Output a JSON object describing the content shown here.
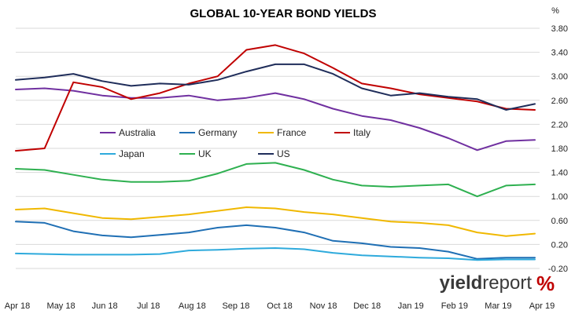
{
  "chart_data": {
    "type": "line",
    "title": "GLOBAL 10-YEAR BOND YIELDS",
    "ylabel": "%",
    "xlabel": "",
    "ylim": [
      -0.2,
      3.8
    ],
    "yticks": [
      "3.80",
      "3.40",
      "3.00",
      "2.60",
      "2.20",
      "1.80",
      "1.40",
      "1.00",
      "0.60",
      "0.20",
      "-0.20"
    ],
    "x_labels": [
      "Apr 18",
      "May 18",
      "Jun 18",
      "Jul 18",
      "Aug 18",
      "Sep 18",
      "Oct 18",
      "Nov 18",
      "Dec 18",
      "Jan 19",
      "Feb 19",
      "Mar 19",
      "Apr 19"
    ],
    "grid": true,
    "legend_position": "inside-upper-left",
    "series": [
      {
        "name": "Australia",
        "color": "#7030a0",
        "values": [
          2.78,
          2.8,
          2.76,
          2.68,
          2.64,
          2.64,
          2.68,
          2.6,
          2.64,
          2.72,
          2.62,
          2.46,
          2.34,
          2.27,
          2.14,
          1.97,
          1.77,
          1.92,
          1.94
        ]
      },
      {
        "name": "Germany",
        "color": "#1f6fb4",
        "values": [
          0.58,
          0.56,
          0.42,
          0.35,
          0.32,
          0.36,
          0.4,
          0.48,
          0.52,
          0.48,
          0.4,
          0.26,
          0.22,
          0.16,
          0.14,
          0.08,
          -0.04,
          -0.02,
          -0.02
        ]
      },
      {
        "name": "France",
        "color": "#f0b800",
        "values": [
          0.78,
          0.8,
          0.72,
          0.64,
          0.62,
          0.66,
          0.7,
          0.76,
          0.82,
          0.8,
          0.74,
          0.7,
          0.64,
          0.58,
          0.56,
          0.52,
          0.4,
          0.34,
          0.38
        ]
      },
      {
        "name": "Italy",
        "color": "#c00000",
        "values": [
          1.76,
          1.8,
          2.9,
          2.82,
          2.62,
          2.72,
          2.88,
          3.0,
          3.44,
          3.52,
          3.38,
          3.14,
          2.88,
          2.8,
          2.7,
          2.64,
          2.58,
          2.46,
          2.44
        ]
      },
      {
        "name": "Japan",
        "color": "#2eaadc",
        "values": [
          0.05,
          0.04,
          0.03,
          0.03,
          0.03,
          0.04,
          0.1,
          0.11,
          0.13,
          0.14,
          0.12,
          0.06,
          0.02,
          0.0,
          -0.02,
          -0.03,
          -0.06,
          -0.05,
          -0.05
        ]
      },
      {
        "name": "UK",
        "color": "#2eb050",
        "values": [
          1.46,
          1.44,
          1.36,
          1.28,
          1.24,
          1.24,
          1.26,
          1.38,
          1.54,
          1.56,
          1.44,
          1.28,
          1.18,
          1.16,
          1.18,
          1.2,
          1.0,
          1.18,
          1.2
        ]
      },
      {
        "name": "US",
        "color": "#1f2d5a",
        "values": [
          2.94,
          2.98,
          3.04,
          2.92,
          2.84,
          2.88,
          2.86,
          2.94,
          3.08,
          3.2,
          3.2,
          3.04,
          2.8,
          2.68,
          2.72,
          2.66,
          2.62,
          2.44,
          2.54
        ]
      }
    ]
  },
  "brand": {
    "part1": "yield",
    "part2": "report",
    "part3": "%"
  }
}
